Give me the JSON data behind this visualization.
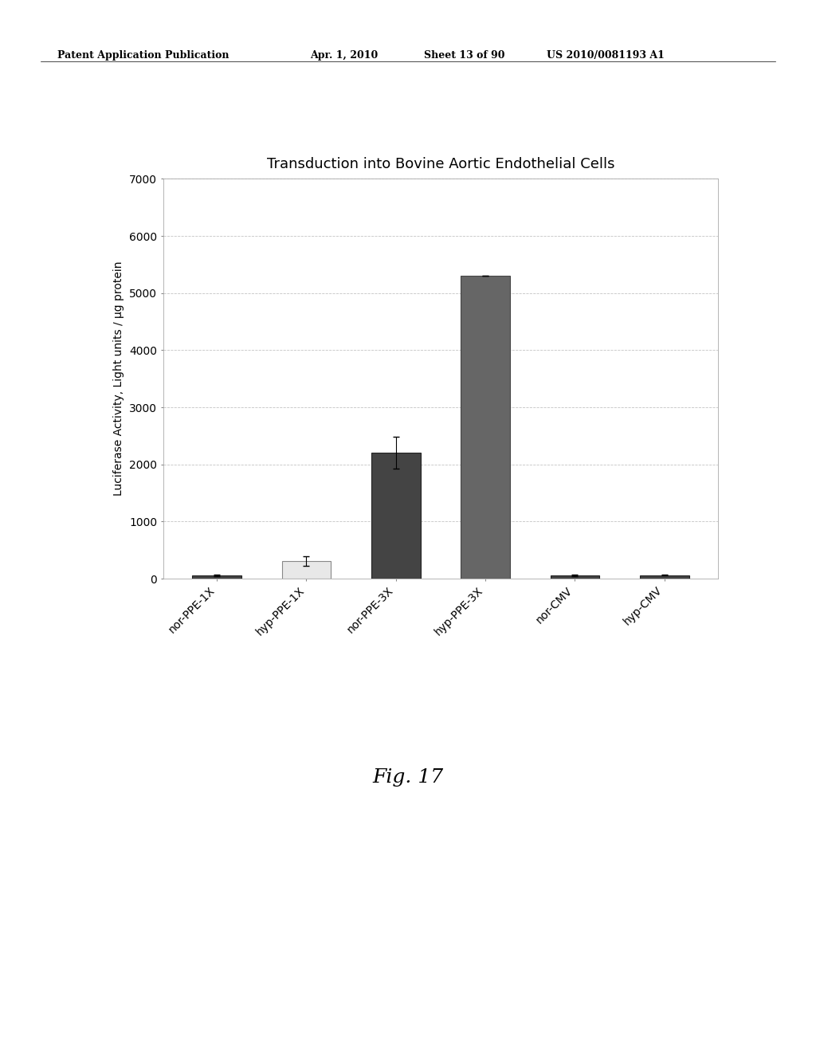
{
  "title": "Transduction into Bovine Aortic Endothelial Cells",
  "ylabel": "Luciferase Activity, Light units / µg protein",
  "categories": [
    "nor-PPE-1X",
    "hyp-PPE-1X",
    "nor-PPE-3X",
    "hyp-PPE-3X",
    "nor-CMV",
    "hyp-CMV"
  ],
  "values": [
    55,
    310,
    2200,
    5300,
    55,
    60
  ],
  "errors": [
    15,
    80,
    280,
    0,
    10,
    10
  ],
  "bar_colors": [
    "#444444",
    "#e8e8e8",
    "#444444",
    "#666666",
    "#444444",
    "#444444"
  ],
  "bar_edgecolors": [
    "#222222",
    "#888888",
    "#222222",
    "#444444",
    "#222222",
    "#222222"
  ],
  "ylim": [
    0,
    7000
  ],
  "yticks": [
    0,
    1000,
    2000,
    3000,
    4000,
    5000,
    6000,
    7000
  ],
  "background_color": "#ffffff",
  "plot_bg_color": "#ffffff",
  "title_fontsize": 13,
  "label_fontsize": 10,
  "tick_fontsize": 10,
  "fig_caption": "Fig. 17",
  "header_left": "Patent Application Publication",
  "header_mid1": "Apr. 1, 2010",
  "header_mid2": "Sheet 13 of 90",
  "header_right": "US 2010/0081193 A1"
}
